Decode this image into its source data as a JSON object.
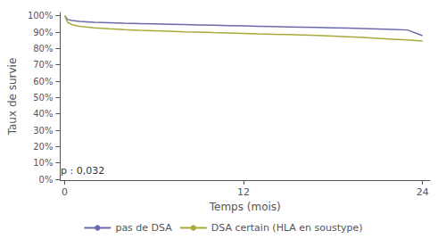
{
  "chart_data": {
    "type": "line",
    "xlabel": "Temps (mois)",
    "ylabel": "Taux de survie",
    "annotation": "p : 0,032",
    "xlim": [
      -0.3,
      24.5
    ],
    "ylim": [
      -0.005,
      1.02
    ],
    "xticks": [
      0,
      12,
      24
    ],
    "yticks": [
      {
        "value": 0.0,
        "label": "0%"
      },
      {
        "value": 0.1,
        "label": "10%"
      },
      {
        "value": 0.2,
        "label": "20%"
      },
      {
        "value": 0.3,
        "label": "30%"
      },
      {
        "value": 0.4,
        "label": "40%"
      },
      {
        "value": 0.5,
        "label": "50%"
      },
      {
        "value": 0.6,
        "label": "60%"
      },
      {
        "value": 0.7,
        "label": "70%"
      },
      {
        "value": 0.8,
        "label": "80%"
      },
      {
        "value": 0.9,
        "label": "90%"
      },
      {
        "value": 1.0,
        "label": "100%"
      }
    ],
    "grid": false,
    "legend": "bottom",
    "x": [
      0,
      0.2,
      0.5,
      1,
      2,
      3,
      4,
      5,
      6,
      7,
      8,
      9,
      10,
      11,
      12,
      13,
      14,
      15,
      16,
      17,
      18,
      19,
      20,
      21,
      22,
      23,
      24
    ],
    "series": [
      {
        "name": "pas de DSA",
        "color": "#6b6baa",
        "values": [
          1.0,
          0.977,
          0.971,
          0.965,
          0.96,
          0.957,
          0.954,
          0.952,
          0.95,
          0.948,
          0.946,
          0.944,
          0.942,
          0.94,
          0.938,
          0.936,
          0.934,
          0.932,
          0.93,
          0.928,
          0.926,
          0.924,
          0.922,
          0.919,
          0.916,
          0.913,
          0.878
        ]
      },
      {
        "name": "DSA certain (HLA en soustype)",
        "color": "#a8aa3a",
        "values": [
          1.0,
          0.96,
          0.945,
          0.935,
          0.926,
          0.92,
          0.915,
          0.911,
          0.908,
          0.905,
          0.902,
          0.9,
          0.897,
          0.895,
          0.892,
          0.889,
          0.887,
          0.885,
          0.883,
          0.88,
          0.876,
          0.872,
          0.868,
          0.862,
          0.857,
          0.852,
          0.845
        ]
      }
    ]
  }
}
